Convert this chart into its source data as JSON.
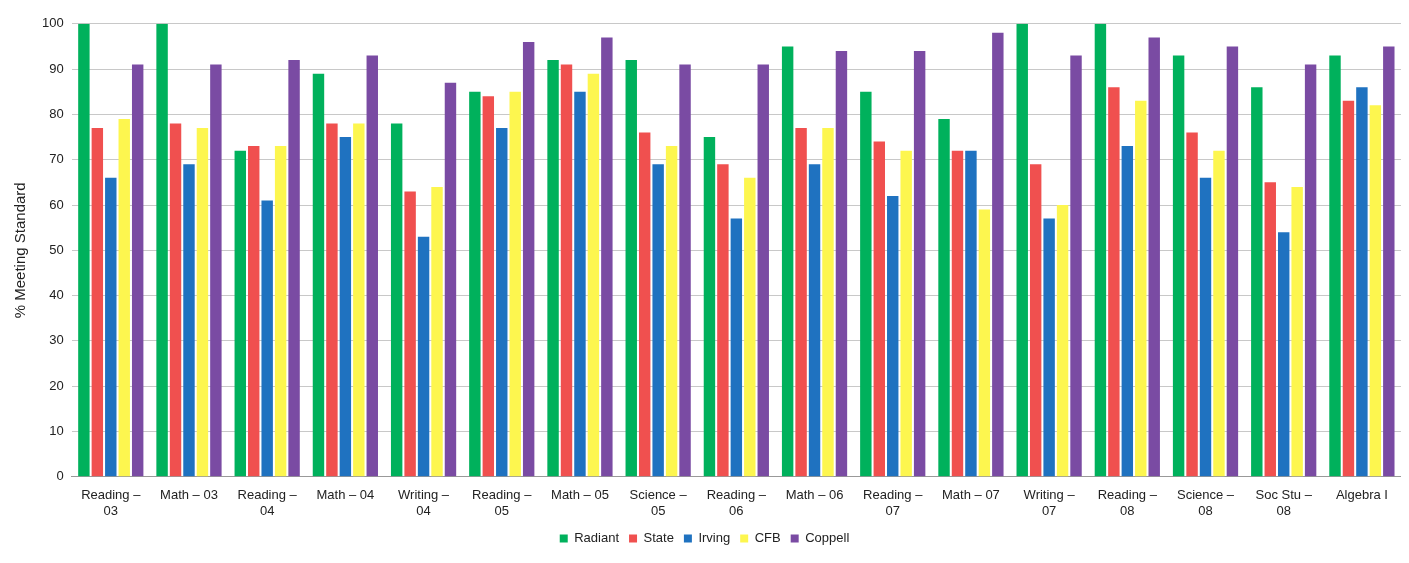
{
  "chart_data": {
    "type": "bar",
    "ylabel": "% Meeting Standard",
    "categories": [
      "Reading – 03",
      "Math – 03",
      "Reading – 04",
      "Math – 04",
      "Writing – 04",
      "Reading – 05",
      "Math – 05",
      "Science – 05",
      "Reading – 06",
      "Math – 06",
      "Reading – 07",
      "Math – 07",
      "Writing – 07",
      "Reading – 08",
      "Science – 08",
      "Soc Stu – 08",
      "Algebra I"
    ],
    "series": [
      {
        "name": "Radiant",
        "color": "#00b15c",
        "values": [
          100,
          100,
          72,
          89,
          78,
          85,
          92,
          92,
          75,
          95,
          85,
          79,
          100,
          100,
          93,
          86,
          93
        ]
      },
      {
        "name": "State",
        "color": "#f0504f",
        "values": [
          77,
          78,
          73,
          78,
          63,
          84,
          91,
          76,
          69,
          77,
          74,
          72,
          69,
          86,
          76,
          65,
          83
        ]
      },
      {
        "name": "Irving",
        "color": "#1f72c0",
        "values": [
          66,
          69,
          61,
          75,
          53,
          77,
          85,
          69,
          57,
          69,
          62,
          72,
          57,
          73,
          66,
          54,
          86
        ]
      },
      {
        "name": "CFB",
        "color": "#fdf64f",
        "values": [
          79,
          77,
          73,
          78,
          64,
          85,
          89,
          73,
          66,
          77,
          72,
          59,
          60,
          83,
          72,
          64,
          82
        ]
      },
      {
        "name": "Coppell",
        "color": "#7a4ba3",
        "values": [
          91,
          91,
          92,
          93,
          87,
          96,
          97,
          91,
          91,
          94,
          94,
          98,
          93,
          97,
          95,
          91,
          95
        ]
      }
    ],
    "ylim": [
      0,
      100
    ],
    "yticks": [
      0,
      10,
      20,
      30,
      40,
      50,
      60,
      70,
      80,
      90,
      100
    ],
    "grid": "y",
    "legend": "bottom"
  }
}
